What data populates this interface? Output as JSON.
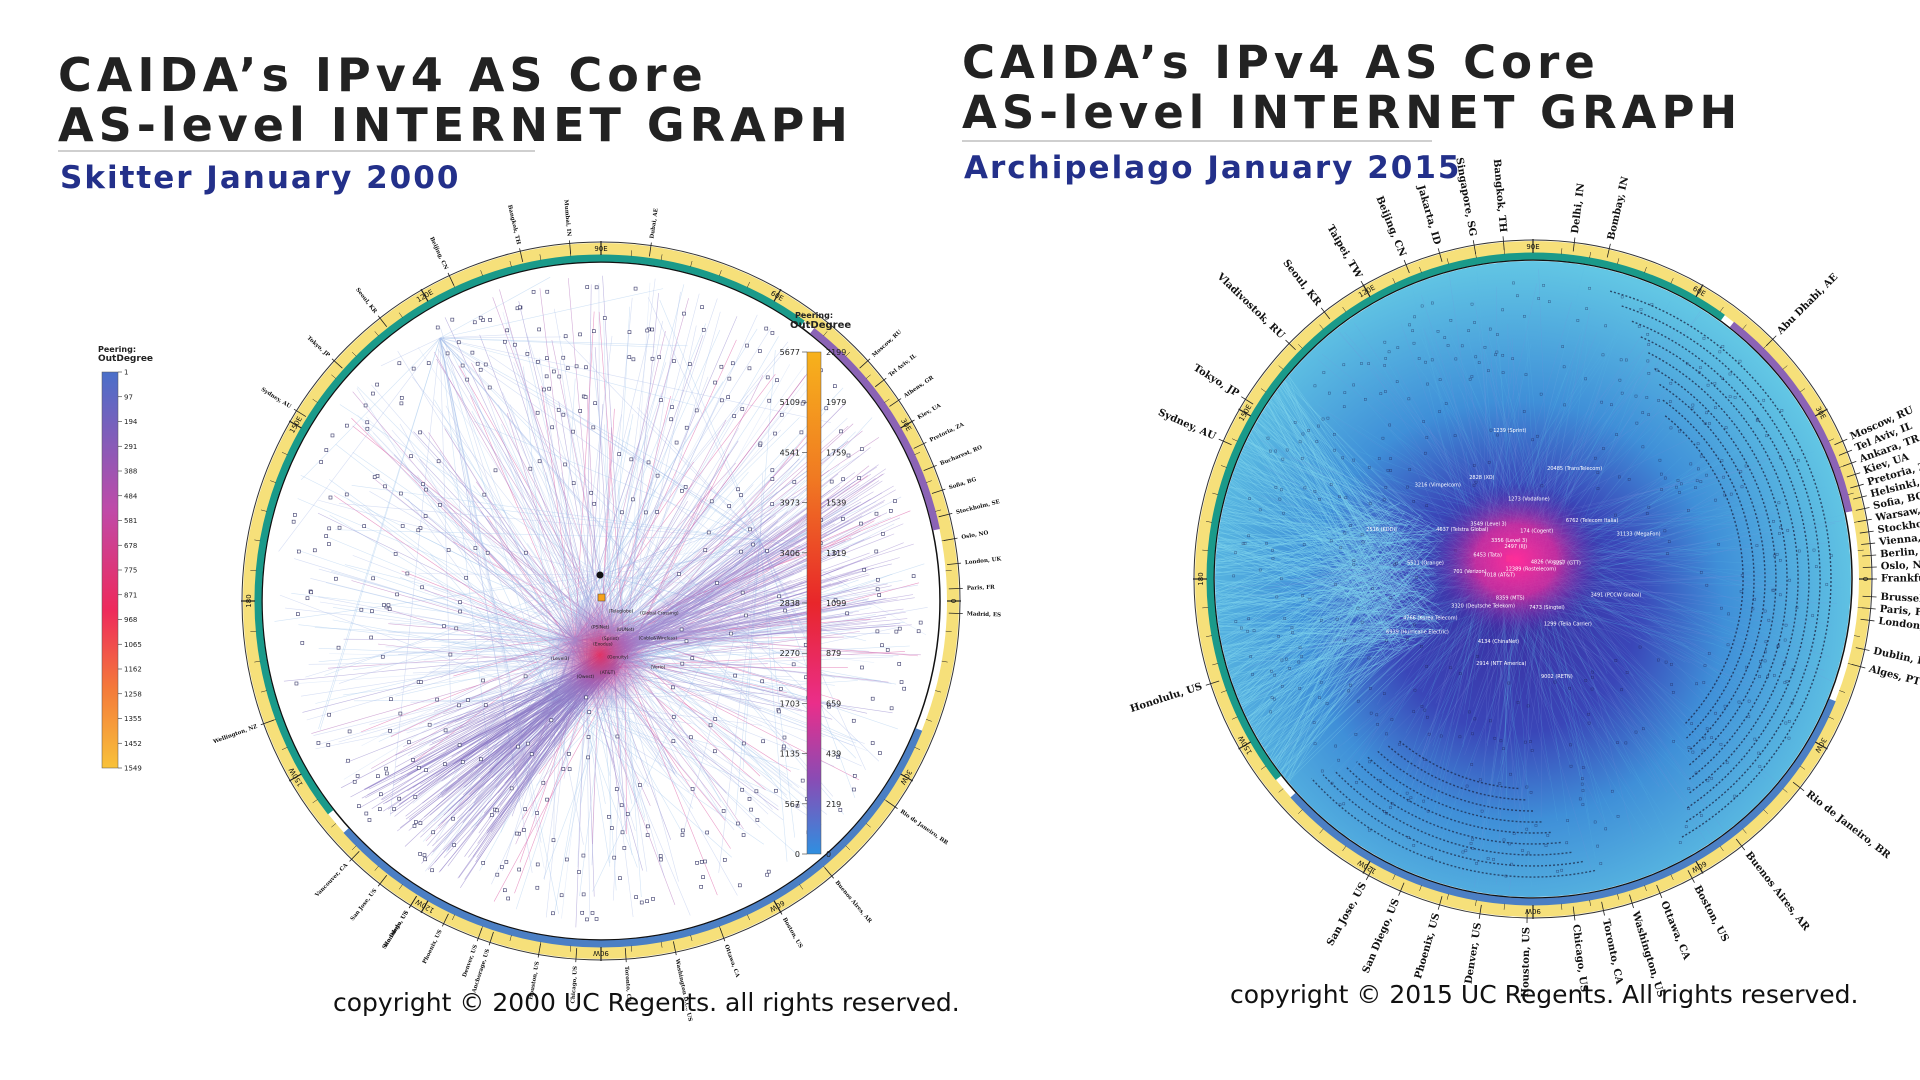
{
  "left": {
    "title_line1": "CAIDA’s IPv4 AS Core",
    "title_line2": "AS-level INTERNET GRAPH",
    "subtitle": "Skitter January 2000",
    "copyright": "copyright © 2000 UC Regents. all rights reserved.",
    "legend": {
      "title_line1": "Peering:",
      "title_line2": "OutDegree",
      "ticks": [
        "1",
        "97",
        "194",
        "291",
        "388",
        "484",
        "581",
        "678",
        "775",
        "871",
        "968",
        "1065",
        "1162",
        "1258",
        "1355",
        "1452",
        "1549"
      ]
    },
    "cities": [
      "Wellington, NZ",
      "Honolulu, US",
      "Anchorage, US",
      "Sydney, AU",
      "Tokyo, JP",
      "Seoul, KR",
      "Beijing, CN",
      "Bangkok, TH",
      "Mumbai, IN",
      "Dubai, AE",
      "Moscow, RU",
      "Tel Aviv, IL",
      "Athens, GR",
      "Kiev, UA",
      "Pretoria, ZA",
      "Bucharest, RO",
      "Sofia, BG",
      "Stockholm, SE",
      "Oslo, NO",
      "London, UK",
      "Paris, FR",
      "Madrid, ES",
      "Rio de Janeiro, BR",
      "Buenos Aires, AR",
      "Boston, US",
      "Ottawa, CA",
      "Washington D.C., US",
      "Toronto, CA",
      "Chicago, US",
      "Houston, US",
      "Denver, US",
      "Phoenix, US",
      "San Diego, US",
      "San Jose, US",
      "Vancouver, CA"
    ],
    "longitudes": [
      "150E",
      "120E",
      "90E",
      "60E",
      "30E",
      "0",
      "30W",
      "60W",
      "90W",
      "120W",
      "150W",
      "180"
    ],
    "node_labels": [
      "(Sprint)",
      "(UUNet)",
      "(Cable&Wireless)",
      "(Verio)",
      "(Genuity)",
      "(AT&T)",
      "(Qwest)",
      "(Level3)",
      "(Exodus)",
      "(PSINet)",
      "(Teleglobe)",
      "(Global Crossing)"
    ]
  },
  "right": {
    "title_line1": "CAIDA’s IPv4 AS Core",
    "title_line2": "AS-level INTERNET GRAPH",
    "subtitle": "Archipelago January 2015",
    "copyright": "copyright © 2015 UC Regents. All rights reserved.",
    "legend": {
      "title_line1": "Peering:",
      "title_line2": "OutDegree",
      "ticks_left": [
        "5677",
        "5109",
        "4541",
        "3973",
        "3406",
        "2838",
        "2270",
        "1703",
        "1135",
        "567",
        "0"
      ],
      "ticks_right": [
        "2199",
        "1979",
        "1759",
        "1539",
        "1319",
        "1099",
        "879",
        "659",
        "439",
        "219",
        "0"
      ]
    },
    "cities": [
      "Sydney, AU",
      "Tokyo, JP",
      "Vladivostok, RU",
      "Seoul, KR",
      "Taipei, TW",
      "Beijing, CN",
      "Jakarta, ID",
      "Singapore, SG",
      "Bangkok, TH",
      "Delhi, IN",
      "Bombay, IN",
      "Abu Dhabi, AE",
      "Moscow, RU",
      "Tel Aviv, IL",
      "Ankara, TR",
      "Kiev, UA",
      "Pretoria, ZA",
      "Helsinki, FI",
      "Sofia, BG",
      "Warsaw, PL",
      "Stockholm, SE",
      "Vienna, AT",
      "Berlin, DE",
      "Oslo, NO",
      "Frankfurt, DE",
      "Brussels, BE",
      "Paris, FR",
      "London, UK",
      "Dublin, IE",
      "Alges, PT",
      "Rio de Janeiro, BR",
      "Buenos Aires, AR",
      "Boston, US",
      "Ottawa, CA",
      "Washington, US",
      "Toronto, CA",
      "Chicago, US",
      "Houston, US",
      "Denver, US",
      "Phoenix, US",
      "San Diego, US",
      "San Jose, US",
      "Honolulu, US"
    ],
    "longitudes": [
      "150E",
      "120E",
      "90E",
      "60E",
      "30E",
      "0",
      "30W",
      "60W",
      "90W",
      "120W",
      "150W",
      "180"
    ],
    "node_labels": [
      "3356 (Level 3)",
      "174 (Cogent)",
      "3257 (GTT)",
      "1299 (Telia Carrier)",
      "2914 (NTT America)",
      "6939 (Hurricane Electric)",
      "6453 (Tata)",
      "3549 (Level 3)",
      "1273 (Vodafone)",
      "6762 (Telecom Italia)",
      "3491 (PCCW Global)",
      "9002 (RETN)",
      "7018 (AT&T)",
      "701 (Verizon)",
      "4637 (Telstra Global)",
      "2828 (XO)",
      "20485 (TransTelecom)",
      "31133 (MegaFon)",
      "12389 (Rostelecom)",
      "8359 (MTS)",
      "3320 (Deutsche Telekom)",
      "5511 (Orange)",
      "3216 (Vimpelcom)",
      "1239 (Sprint)",
      "2497 (IIJ)",
      "4826 (Vocus)",
      "7473 (Singtel)",
      "4134 (ChinaNet)",
      "4766 (Korea Telecom)",
      "2516 (KDDI)"
    ]
  }
}
